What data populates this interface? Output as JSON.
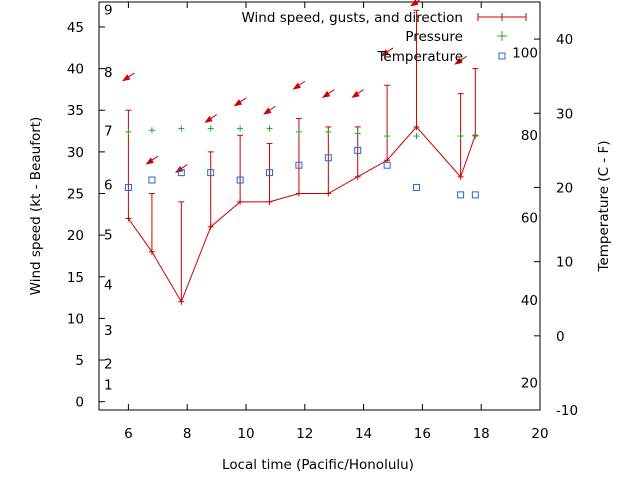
{
  "chart_data": {
    "type": "line",
    "xlabel": "Local time (Pacific/Honolulu)",
    "ylabel": "Wind speed (kt - Beaufort)",
    "y2label": "Temperature (C - F)",
    "xlim": [
      5,
      20
    ],
    "ylim": [
      -1,
      48
    ],
    "y2lim_celsius": [
      -10,
      45
    ],
    "x_ticks": [
      "6",
      "8",
      "10",
      "12",
      "14",
      "16",
      "18",
      "20"
    ],
    "y_ticks": [
      "0",
      "5",
      "10",
      "15",
      "20",
      "25",
      "30",
      "35",
      "40",
      "45"
    ],
    "y2_ticks_celsius": [
      "-10",
      "0",
      "10",
      "20",
      "30",
      "40"
    ],
    "y2_ticks_fahrenheit": [
      "20",
      "40",
      "60",
      "80",
      "100"
    ],
    "beaufort_ticks": [
      "1",
      "2",
      "3",
      "4",
      "5",
      "6",
      "7",
      "8",
      "9"
    ],
    "grid": false,
    "legend_position": "top-right",
    "legend": [
      "Wind speed, gusts, and direction",
      "Pressure",
      "Temperature"
    ],
    "colors": {
      "wind": "#cc0000",
      "pressure": "#22aa22",
      "temperature": "#2266cc",
      "axis": "#000000"
    },
    "series": [
      {
        "name": "Wind speed, gusts, and direction",
        "points": [
          {
            "x": 6.0,
            "speed": 22,
            "gust": 35,
            "dir_arrow_y": 39,
            "dir_deg": 60
          },
          {
            "x": 6.8,
            "speed": 18,
            "gust": 25,
            "dir_arrow_y": 29,
            "dir_deg": 60
          },
          {
            "x": 7.8,
            "speed": 12,
            "gust": 24,
            "dir_arrow_y": 28,
            "dir_deg": 60
          },
          {
            "x": 8.8,
            "speed": 21,
            "gust": 30,
            "dir_arrow_y": 34,
            "dir_deg": 60
          },
          {
            "x": 9.8,
            "speed": 24,
            "gust": 32,
            "dir_arrow_y": 36,
            "dir_deg": 60
          },
          {
            "x": 10.8,
            "speed": 24,
            "gust": 31,
            "dir_arrow_y": 35,
            "dir_deg": 60
          },
          {
            "x": 11.8,
            "speed": 25,
            "gust": 34,
            "dir_arrow_y": 38,
            "dir_deg": 60
          },
          {
            "x": 12.8,
            "speed": 25,
            "gust": 33,
            "dir_arrow_y": 37,
            "dir_deg": 60
          },
          {
            "x": 13.8,
            "speed": 27,
            "gust": 33,
            "dir_arrow_y": 37,
            "dir_deg": 60
          },
          {
            "x": 14.8,
            "speed": 29,
            "gust": 38,
            "dir_arrow_y": 42,
            "dir_deg": 60
          },
          {
            "x": 15.8,
            "speed": 33,
            "gust": 47,
            "dir_arrow_y": 48,
            "dir_deg": 60
          },
          {
            "x": 17.3,
            "speed": 27,
            "gust": 37,
            "dir_arrow_y": 41,
            "dir_deg": 60
          },
          {
            "x": 17.8,
            "speed": 32,
            "gust": 40,
            "dir_arrow_y": null,
            "dir_deg": 60
          }
        ]
      },
      {
        "name": "Pressure",
        "x": [
          6.0,
          6.8,
          7.8,
          8.8,
          9.8,
          10.8,
          11.8,
          12.8,
          13.8,
          14.8,
          15.8,
          17.3,
          17.8
        ],
        "y_on_left_axis": [
          32.4,
          32.6,
          32.8,
          32.8,
          32.8,
          32.8,
          32.4,
          32.4,
          32.2,
          31.9,
          31.9,
          31.9,
          31.9
        ]
      },
      {
        "name": "Temperature",
        "unit": "C",
        "x": [
          6.0,
          6.8,
          7.8,
          8.8,
          9.8,
          10.8,
          11.8,
          12.8,
          13.8,
          14.8,
          15.8,
          17.3,
          17.8
        ],
        "values": [
          20.0,
          21.0,
          22.0,
          22.0,
          21.0,
          22.0,
          23.0,
          24.0,
          25.0,
          23.0,
          20.0,
          19.0,
          19.0
        ]
      }
    ]
  }
}
